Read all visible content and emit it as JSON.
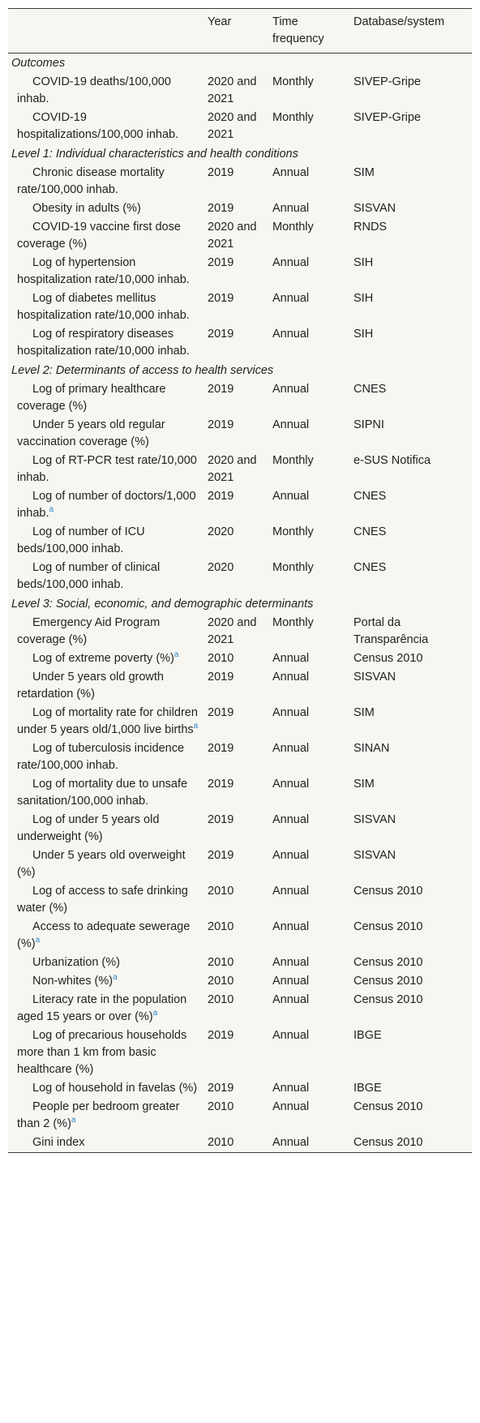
{
  "table": {
    "headers": [
      "",
      "Year",
      "Time frequency",
      "Database/system"
    ],
    "sections": [
      {
        "title": "Outcomes",
        "rows": [
          {
            "variable": "COVID-19 deaths/100,000 inhab.",
            "note": "",
            "year": "2020 and 2021",
            "frequency": "Monthly",
            "database": "SIVEP-Gripe"
          },
          {
            "variable": "COVID-19 hospitalizations/100,000 inhab.",
            "note": "",
            "year": "2020 and 2021",
            "frequency": "Monthly",
            "database": "SIVEP-Gripe"
          }
        ]
      },
      {
        "title": "Level 1: Individual characteristics and health conditions",
        "rows": [
          {
            "variable": "Chronic disease mortality rate/100,000 inhab.",
            "note": "",
            "year": "2019",
            "frequency": "Annual",
            "database": "SIM"
          },
          {
            "variable": "Obesity in adults (%)",
            "note": "",
            "year": "2019",
            "frequency": "Annual",
            "database": "SISVAN"
          },
          {
            "variable": "COVID-19 vaccine first dose coverage (%)",
            "note": "",
            "year": "2020 and 2021",
            "frequency": "Monthly",
            "database": "RNDS"
          },
          {
            "variable": "Log of hypertension hospitalization rate/10,000 inhab.",
            "note": "",
            "year": "2019",
            "frequency": "Annual",
            "database": "SIH"
          },
          {
            "variable": "Log of diabetes mellitus hospitalization rate/10,000 inhab.",
            "note": "",
            "year": "2019",
            "frequency": "Annual",
            "database": "SIH"
          },
          {
            "variable": "Log of respiratory diseases hospitalization rate/10,000 inhab.",
            "note": "",
            "year": "2019",
            "frequency": "Annual",
            "database": "SIH"
          }
        ]
      },
      {
        "title": "Level 2: Determinants of access to health services",
        "rows": [
          {
            "variable": "Log of primary healthcare coverage (%)",
            "note": "",
            "year": "2019",
            "frequency": "Annual",
            "database": "CNES"
          },
          {
            "variable": "Under 5 years old regular vaccination coverage (%)",
            "note": "",
            "year": "2019",
            "frequency": "Annual",
            "database": "SIPNI"
          },
          {
            "variable": "Log of RT-PCR test rate/10,000 inhab.",
            "note": "",
            "year": "2020 and 2021",
            "frequency": "Monthly",
            "database": "e-SUS Notifica"
          },
          {
            "variable": "Log of number of doctors/1,000 inhab.",
            "note": "a",
            "year": "2019",
            "frequency": "Annual",
            "database": "CNES"
          },
          {
            "variable": "Log of number of ICU beds/100,000 inhab.",
            "note": "",
            "year": "2020",
            "frequency": "Monthly",
            "database": "CNES"
          },
          {
            "variable": "Log of number of clinical beds/100,000 inhab.",
            "note": "",
            "year": "2020",
            "frequency": "Monthly",
            "database": "CNES"
          }
        ]
      },
      {
        "title": "Level 3: Social, economic, and demographic determinants",
        "rows": [
          {
            "variable": "Emergency Aid Program coverage (%)",
            "note": "",
            "year": "2020 and 2021",
            "frequency": "Monthly",
            "database": "Portal da Transparência"
          },
          {
            "variable": "Log of extreme poverty (%)",
            "note": "a",
            "year": "2010",
            "frequency": "Annual",
            "database": "Census 2010"
          },
          {
            "variable": "Under 5 years old growth retardation (%)",
            "note": "",
            "year": "2019",
            "frequency": "Annual",
            "database": "SISVAN"
          },
          {
            "variable": "Log of mortality rate for children under 5 years old/1,000 live births",
            "note": "a",
            "year": "2019",
            "frequency": "Annual",
            "database": "SIM"
          },
          {
            "variable": "Log of tuberculosis incidence rate/100,000 inhab.",
            "note": "",
            "year": "2019",
            "frequency": "Annual",
            "database": "SINAN"
          },
          {
            "variable": "Log of mortality due to unsafe sanitation/100,000 inhab.",
            "note": "",
            "year": "2019",
            "frequency": "Annual",
            "database": "SIM"
          },
          {
            "variable": "Log of under 5 years old underweight (%)",
            "note": "",
            "year": "2019",
            "frequency": "Annual",
            "database": "SISVAN"
          },
          {
            "variable": "Under 5 years old overweight (%)",
            "note": "",
            "year": "2019",
            "frequency": "Annual",
            "database": "SISVAN"
          },
          {
            "variable": "Log of access to safe drinking water (%)",
            "note": "",
            "year": "2010",
            "frequency": "Annual",
            "database": "Census 2010"
          },
          {
            "variable": "Access to adequate sewerage (%)",
            "note": "a",
            "year": "2010",
            "frequency": "Annual",
            "database": "Census 2010"
          },
          {
            "variable": "Urbanization (%)",
            "note": "",
            "year": "2010",
            "frequency": "Annual",
            "database": "Census 2010"
          },
          {
            "variable": "Non-whites (%)",
            "note": "a",
            "year": "2010",
            "frequency": "Annual",
            "database": "Census 2010"
          },
          {
            "variable": "Literacy rate in the population aged 15 years or over (%)",
            "note": "a",
            "year": "2010",
            "frequency": "Annual",
            "database": "Census 2010"
          },
          {
            "variable": "Log of precarious households more than 1 km from basic healthcare (%)",
            "note": "",
            "year": "2019",
            "frequency": "Annual",
            "database": "IBGE"
          },
          {
            "variable": "Log of household in favelas (%)",
            "note": "",
            "year": "2019",
            "frequency": "Annual",
            "database": "IBGE"
          },
          {
            "variable": "People per bedroom greater than 2 (%)",
            "note": "a",
            "year": "2010",
            "frequency": "Annual",
            "database": "Census 2010"
          },
          {
            "variable": "Gini index",
            "note": "",
            "year": "2010",
            "frequency": "Annual",
            "database": "Census 2010"
          }
        ]
      }
    ]
  }
}
